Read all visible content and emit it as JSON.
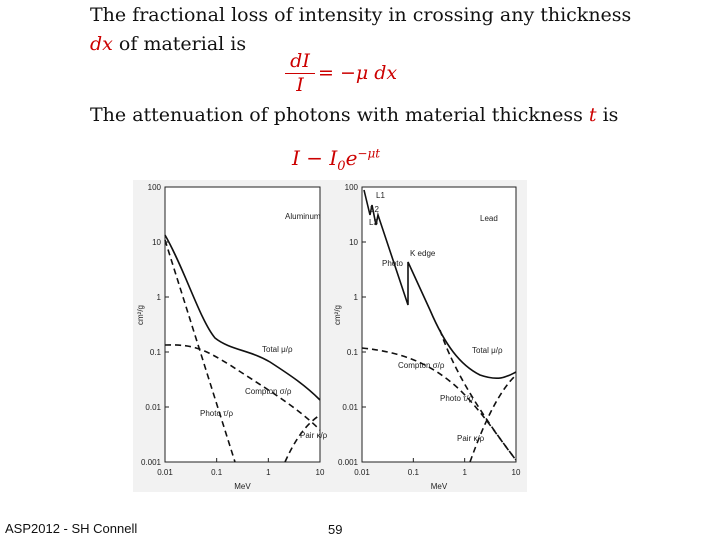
{
  "slide": {
    "line1": "The fractional loss of intensity in crossing any thickness",
    "line2_var": "dx",
    "line2_rest": " of material is",
    "eq1_num": "dI",
    "eq1_den": "I",
    "eq1_rhs": "= −μ dx",
    "line3_start": "The attenuation of photons with material thickness ",
    "line3_var": "t",
    "line3_end": " is",
    "eq2_main": "I − I",
    "eq2_sub": "0",
    "eq2_e": "e",
    "eq2_exp": "−μt",
    "footer_left": "ASP2012 - SH Connell",
    "footer_page": "59"
  },
  "figure": {
    "panels": [
      {
        "yticks": [
          "100",
          "10",
          "1",
          "0.1",
          "0.01",
          "0.001"
        ],
        "xticks": [
          "0.01",
          "0.1",
          "1",
          "10"
        ],
        "ylabel": "cm²/g",
        "xlabel": "MeV",
        "labels": [
          "Aluminum",
          "Total μ/ρ",
          "Compton σ/ρ",
          "Photo τ/ρ",
          "Pair κ/ρ"
        ]
      },
      {
        "yticks": [
          "100",
          "10",
          "1",
          "0.1",
          "0.01",
          "0.001"
        ],
        "xticks": [
          "0.01",
          "0.1",
          "1",
          "10"
        ],
        "ylabel": "cm²/g",
        "xlabel": "MeV",
        "labels": [
          "Lead",
          "L1",
          "L2",
          "L3",
          "K edge",
          "Photo",
          "Total μ/ρ",
          "Compton σ/ρ",
          "Photo τ/ρ",
          "Pair κ/ρ"
        ]
      }
    ]
  }
}
